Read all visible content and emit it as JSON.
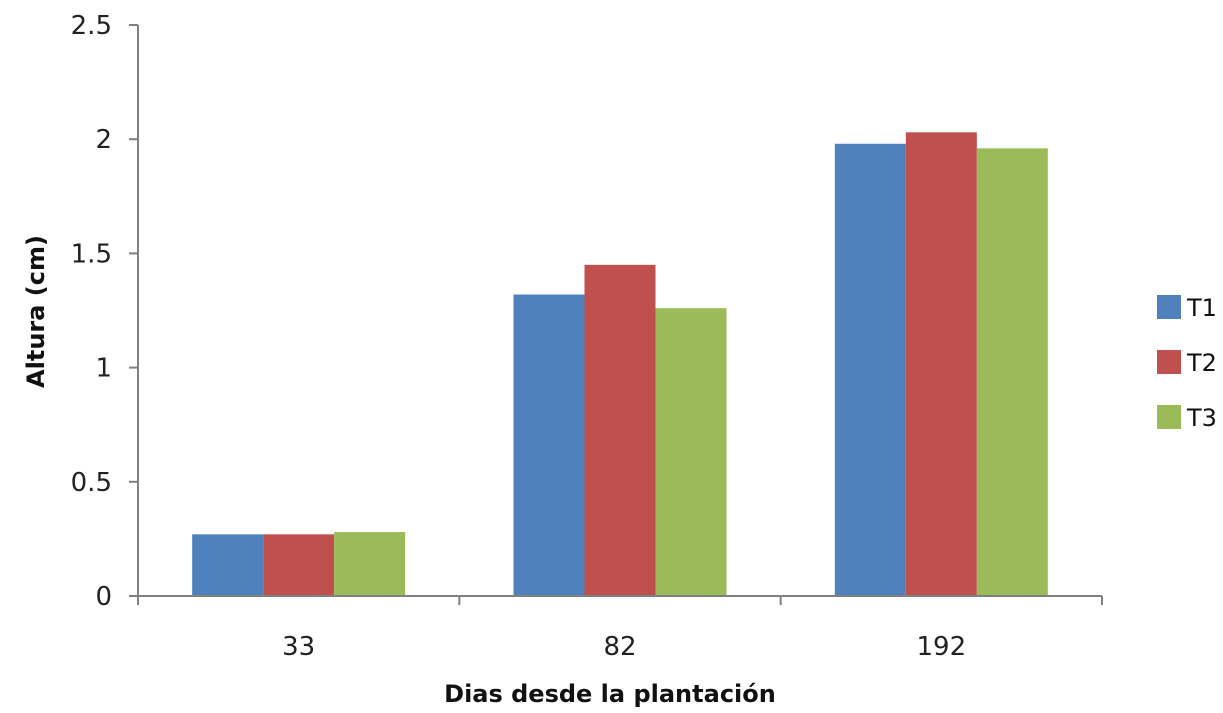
{
  "chart_data": {
    "type": "bar",
    "categories": [
      "33",
      "82",
      "192"
    ],
    "series": [
      {
        "name": "T1",
        "color": "#4F81BD",
        "values": [
          0.27,
          1.32,
          1.98
        ]
      },
      {
        "name": "T2",
        "color": "#C0504D",
        "values": [
          0.27,
          1.45,
          2.03
        ]
      },
      {
        "name": "T3",
        "color": "#9BBB59",
        "values": [
          0.28,
          1.26,
          1.96
        ]
      }
    ],
    "title": "",
    "xlabel": "Dias desde la plantación",
    "ylabel": "Altura (cm)",
    "ylim": [
      0,
      2.5
    ],
    "yticks": [
      "0",
      "0.5",
      "1",
      "1.5",
      "2",
      "2.5"
    ],
    "grid": false,
    "legend_position": "right"
  }
}
